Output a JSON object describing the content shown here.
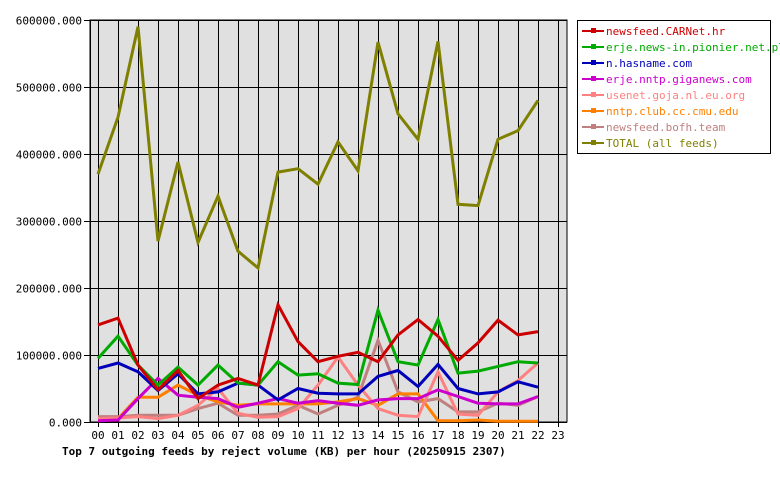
{
  "chart_data": {
    "type": "line",
    "title": "Top 7 outgoing feeds by reject volume (KB) per hour (20250915 2307)",
    "xlabel": "",
    "ylabel": "",
    "ylim": [
      0,
      600000
    ],
    "yticks": [
      "0.000",
      "100000.000",
      "200000.000",
      "300000.000",
      "400000.000",
      "500000.000",
      "600000.000"
    ],
    "categories": [
      "00",
      "01",
      "02",
      "03",
      "04",
      "05",
      "06",
      "07",
      "08",
      "09",
      "10",
      "11",
      "12",
      "13",
      "14",
      "15",
      "16",
      "17",
      "18",
      "19",
      "20",
      "21",
      "22",
      "23"
    ],
    "grid": true,
    "legend_position": "right",
    "series": [
      {
        "name": "newsfeed.CARNet.hr",
        "color": "#cc0000",
        "values": [
          145000,
          155000,
          85000,
          48000,
          77000,
          35000,
          55000,
          65000,
          55000,
          175000,
          120000,
          90000,
          98000,
          104000,
          90000,
          130000,
          153000,
          128000,
          92000,
          118000,
          152000,
          130000,
          135000
        ]
      },
      {
        "name": "erje.news-in.pionier.net.pl",
        "color": "#00aa00",
        "values": [
          95000,
          128000,
          85000,
          55000,
          82000,
          55000,
          85000,
          58000,
          55000,
          90000,
          70000,
          72000,
          58000,
          56000,
          167000,
          90000,
          85000,
          153000,
          73000,
          76000,
          83000,
          90000,
          88000
        ]
      },
      {
        "name": "n.hasname.com",
        "color": "#0000bb",
        "values": [
          80000,
          88000,
          75000,
          47000,
          72000,
          42000,
          45000,
          58000,
          55000,
          33000,
          50000,
          43000,
          42000,
          42000,
          68000,
          77000,
          53000,
          86000,
          50000,
          42000,
          45000,
          60000,
          52000
        ]
      },
      {
        "name": "erje.nntp.giganews.com",
        "color": "#cc00cc",
        "values": [
          2000,
          3000,
          35000,
          65000,
          40000,
          37000,
          35000,
          22000,
          28000,
          35000,
          28000,
          32000,
          28000,
          25000,
          33000,
          35000,
          35000,
          48000,
          38000,
          28000,
          27000,
          27000,
          38000
        ]
      },
      {
        "name": "usenet.goja.nl.eu.org",
        "color": "#ff8080",
        "values": [
          5000,
          6000,
          8000,
          5000,
          10000,
          25000,
          50000,
          13000,
          7000,
          8000,
          20000,
          55000,
          97000,
          55000,
          20000,
          10000,
          8000,
          75000,
          12000,
          10000,
          45000,
          62000,
          88000
        ]
      },
      {
        "name": "nntp.club.cc.cmu.edu",
        "color": "#ff8000",
        "values": [
          2000,
          5000,
          37000,
          37000,
          55000,
          40000,
          30000,
          25000,
          27000,
          27000,
          27000,
          27000,
          30000,
          35000,
          25000,
          42000,
          42000,
          2000,
          2000,
          3000,
          1000,
          1000,
          1000
        ]
      },
      {
        "name": "newsfeed.bofh.team",
        "color": "#c08080",
        "values": [
          8000,
          8000,
          10000,
          10000,
          10000,
          20000,
          28000,
          10000,
          10000,
          12000,
          25000,
          12000,
          25000,
          37000,
          122000,
          45000,
          30000,
          35000,
          15000,
          15000,
          28000,
          25000,
          38000
        ]
      },
      {
        "name": "TOTAL (all feeds)",
        "color": "#808000",
        "values": [
          370000,
          455000,
          590000,
          270000,
          388000,
          268000,
          337000,
          255000,
          230000,
          373000,
          378000,
          355000,
          418000,
          375000,
          567000,
          460000,
          422000,
          568000,
          325000,
          323000,
          422000,
          435000,
          480000
        ]
      }
    ]
  }
}
